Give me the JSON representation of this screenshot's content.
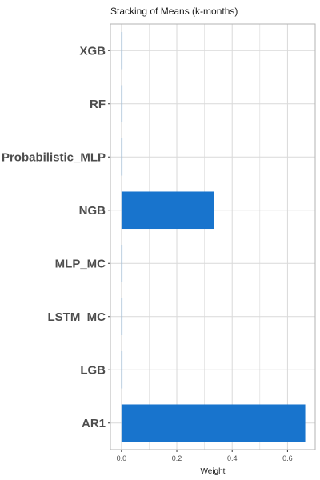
{
  "chart_data": {
    "type": "bar",
    "orientation": "horizontal",
    "title": "Stacking of Means (k-months)",
    "xlabel": "Weight",
    "ylabel": "",
    "categories": [
      "XGB",
      "RF",
      "Probabilistic_MLP",
      "NGB",
      "MLP_MC",
      "LSTM_MC",
      "LGB",
      "AR1"
    ],
    "values": [
      0.001,
      0.001,
      0.001,
      0.335,
      0.001,
      0.001,
      0.001,
      0.664
    ],
    "xlim": [
      -0.04,
      0.7
    ],
    "xticks": [
      0.0,
      0.2,
      0.4,
      0.6
    ],
    "xtick_labels": [
      "0.0",
      "0.2",
      "0.4",
      "0.6"
    ],
    "grid": true,
    "bar_color": "#1874cd",
    "grid_color": "#d9d9d9",
    "panel_border_color": "#b3b3b3"
  }
}
